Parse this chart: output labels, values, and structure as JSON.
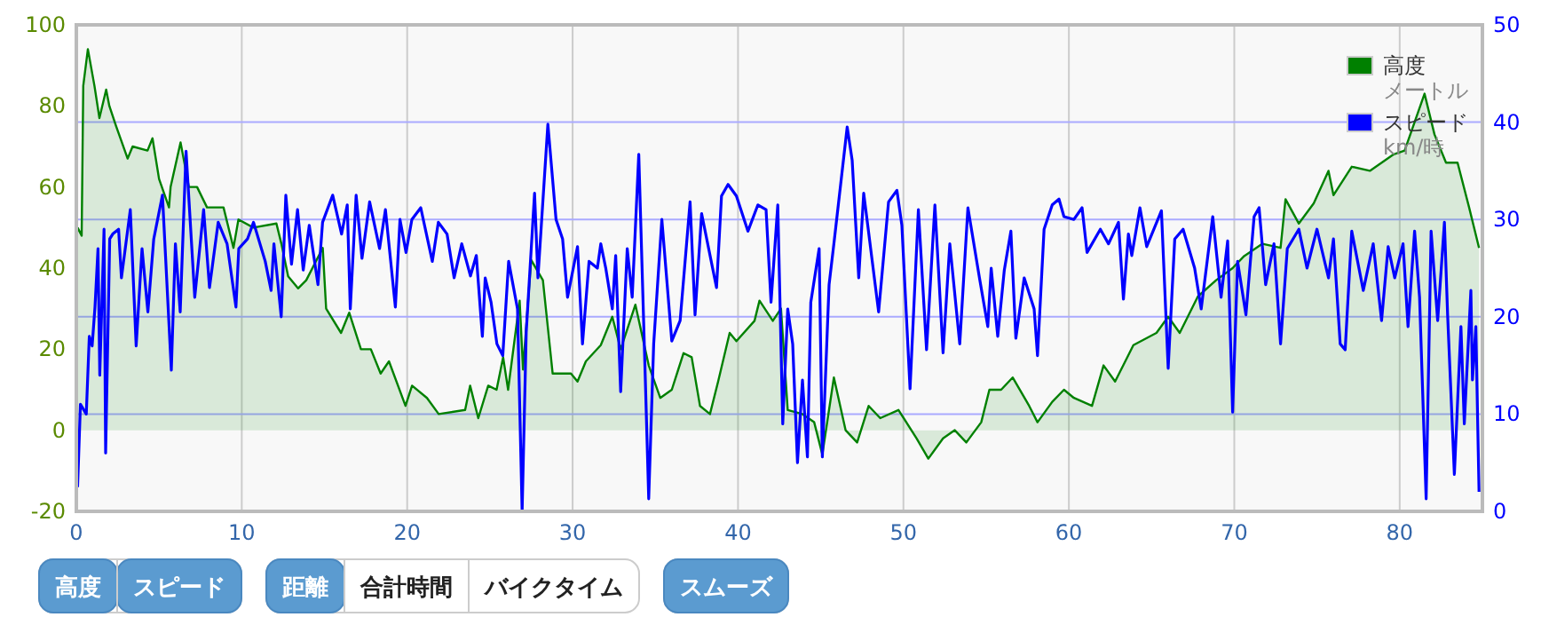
{
  "chart_data": {
    "type": "line",
    "xlim": [
      0,
      85
    ],
    "xticks": [
      0,
      10,
      20,
      30,
      40,
      50,
      60,
      70,
      80
    ],
    "ylim": [
      -20,
      100
    ],
    "yticks": [
      -20,
      0,
      20,
      40,
      60,
      80,
      100
    ],
    "y2lim": [
      0,
      50
    ],
    "y2ticks": [
      0,
      10,
      20,
      30,
      40,
      50
    ],
    "grid": true,
    "legend": "top right",
    "marker": "none",
    "line_style": "solid",
    "annotations": [
      "メートル",
      "km/時",
      "高度",
      "スピード",
      "距離",
      "合計時間",
      "バイクタイム",
      "スムーズ"
    ],
    "series": [
      {
        "name": "高度",
        "type": "area",
        "color": "#008000",
        "x": [
          0.07,
          0.32,
          0.42,
          0.7,
          1.1,
          1.4,
          1.8,
          2.0,
          2.4,
          3.1,
          3.4,
          4.3,
          4.6,
          5.0,
          5.6,
          5.7,
          6.3,
          6.8,
          7.3,
          7.9,
          8.9,
          9.5,
          9.8,
          10.7,
          12.1,
          12.4,
          12.8,
          13.4,
          13.9,
          14.9,
          15.1,
          16.0,
          16.5,
          17.2,
          17.8,
          18.4,
          18.9,
          19.9,
          20.3,
          21.2,
          21.9,
          23.5,
          23.8,
          24.3,
          24.9,
          25.4,
          25.8,
          26.1,
          26.8,
          27.0,
          27.5,
          28.2,
          28.8,
          29.9,
          30.3,
          30.8,
          31.7,
          32.4,
          32.9,
          33.8,
          34.6,
          35.3,
          36.0,
          36.7,
          37.2,
          37.7,
          38.3,
          38.8,
          39.5,
          39.9,
          41.0,
          41.3,
          42.1,
          42.6,
          43.0,
          43.9,
          44.6,
          45.1,
          45.8,
          46.5,
          47.2,
          47.9,
          48.6,
          49.7,
          50.8,
          51.5,
          52.4,
          53.1,
          53.8,
          54.7,
          55.2,
          55.9,
          56.6,
          57.6,
          58.1,
          59.0,
          59.7,
          60.3,
          61.4,
          62.1,
          62.8,
          63.9,
          65.3,
          66.0,
          66.7,
          67.8,
          68.9,
          69.9,
          70.6,
          71.7,
          72.8,
          73.1,
          73.9,
          74.8,
          75.7,
          76.0,
          77.1,
          78.2,
          79.6,
          80.3,
          81.5,
          82.1,
          82.8,
          83.5,
          84.2,
          84.8
        ],
        "values": [
          50,
          48,
          85,
          94,
          85,
          77,
          84,
          80,
          75,
          67,
          70,
          69,
          72,
          62,
          55,
          60,
          71,
          60,
          60,
          55,
          55,
          45,
          52,
          50,
          51,
          46,
          38,
          35,
          37,
          45,
          30,
          24,
          29,
          20,
          20,
          14,
          17,
          6,
          11,
          8,
          4,
          5,
          11,
          3,
          11,
          10,
          18,
          10,
          32,
          15,
          42,
          37,
          14,
          14,
          12,
          17,
          21,
          28,
          20,
          31,
          16,
          8,
          10,
          19,
          18,
          6,
          4,
          12,
          24,
          22,
          27,
          32,
          27,
          30,
          5,
          4,
          2,
          -6,
          13,
          0,
          -3,
          6,
          3,
          5,
          -2,
          -7,
          -2,
          0,
          -3,
          2,
          10,
          10,
          13,
          6,
          2,
          7,
          10,
          8,
          6,
          16,
          12,
          21,
          24,
          28,
          24,
          33,
          37,
          40,
          43,
          46,
          45,
          57,
          51,
          56,
          64,
          58,
          65,
          64,
          68,
          69,
          83,
          73,
          66,
          66,
          55,
          45
        ]
      },
      {
        "name": "スピード",
        "type": "line",
        "axis": "y2",
        "color": "#0000ff",
        "x": [
          0.07,
          0.25,
          0.6,
          0.78,
          0.96,
          1.13,
          1.31,
          1.42,
          1.67,
          1.77,
          2.02,
          2.2,
          2.55,
          2.73,
          3.26,
          3.62,
          3.97,
          4.33,
          4.68,
          5.21,
          5.74,
          5.99,
          6.28,
          6.63,
          7.16,
          7.7,
          8.05,
          8.58,
          9.11,
          9.65,
          9.82,
          10.35,
          10.71,
          11.42,
          11.77,
          11.95,
          12.38,
          12.66,
          13.01,
          13.37,
          13.72,
          14.08,
          14.61,
          14.89,
          15.5,
          16.03,
          16.38,
          16.56,
          16.91,
          17.27,
          17.73,
          18.33,
          18.69,
          19.29,
          19.57,
          19.93,
          20.28,
          20.82,
          21.52,
          21.88,
          22.41,
          22.84,
          23.3,
          23.83,
          24.18,
          24.54,
          24.72,
          25.07,
          25.43,
          25.78,
          26.13,
          26.67,
          26.95,
          27.2,
          27.7,
          27.9,
          28.5,
          29.0,
          29.4,
          29.7,
          30.3,
          30.6,
          31.0,
          31.5,
          31.7,
          32.0,
          32.4,
          32.6,
          32.9,
          33.3,
          33.6,
          34.0,
          34.4,
          34.6,
          34.9,
          35.4,
          36.0,
          36.5,
          37.1,
          37.4,
          37.8,
          38.7,
          39.0,
          39.4,
          39.9,
          40.6,
          41.2,
          41.7,
          42.0,
          42.4,
          42.7,
          43.0,
          43.3,
          43.6,
          43.9,
          44.2,
          44.4,
          44.9,
          45.1,
          45.5,
          45.8,
          46.6,
          46.9,
          47.3,
          47.6,
          48.5,
          49.1,
          49.6,
          49.9,
          50.4,
          50.9,
          51.4,
          51.9,
          52.4,
          52.8,
          53.4,
          53.9,
          54.6,
          55.1,
          55.3,
          55.7,
          56.1,
          56.5,
          56.8,
          57.3,
          57.9,
          58.1,
          58.5,
          59.0,
          59.4,
          59.7,
          60.3,
          60.8,
          61.1,
          61.9,
          62.4,
          63.0,
          63.3,
          63.6,
          63.8,
          64.3,
          64.7,
          65.6,
          66.0,
          66.4,
          66.9,
          67.6,
          68.0,
          68.7,
          69.2,
          69.6,
          69.9,
          70.2,
          70.7,
          71.2,
          71.5,
          71.9,
          72.4,
          72.8,
          73.2,
          73.9,
          74.4,
          75.0,
          75.7,
          76.0,
          76.4,
          76.7,
          77.1,
          77.8,
          78.4,
          78.9,
          79.3,
          79.7,
          80.2,
          80.5,
          80.9,
          81.2,
          81.6,
          81.9,
          82.3,
          82.7,
          82.9,
          83.3,
          83.7,
          83.9,
          84.3,
          84.4,
          84.6,
          84.8
        ],
        "values": [
          2.5,
          11,
          10,
          18,
          17,
          21,
          27,
          14,
          29,
          6,
          28,
          28.5,
          29,
          24,
          31,
          17,
          27,
          20.5,
          28,
          32.5,
          14.5,
          27.5,
          20.5,
          37,
          22,
          31,
          23,
          29.7,
          27.5,
          21,
          27,
          28,
          29.7,
          25.7,
          22.7,
          27.5,
          20,
          32.5,
          25.4,
          31,
          24.8,
          29.4,
          23.3,
          29.7,
          32.5,
          28.5,
          31.5,
          20.8,
          32.5,
          26,
          31.8,
          27,
          31,
          21,
          30,
          26.6,
          30,
          31.2,
          25.7,
          29.7,
          28.5,
          24,
          27.5,
          24.2,
          26.3,
          18,
          24,
          21.5,
          17.2,
          16,
          25.7,
          20.8,
          0,
          18.4,
          32.7,
          24,
          39.8,
          30,
          28,
          22,
          27.2,
          17.2,
          25.7,
          25,
          27.5,
          25,
          20.8,
          26.3,
          12.3,
          27,
          22,
          36.7,
          13.5,
          1.3,
          17.2,
          30,
          17.5,
          19.6,
          31.8,
          20.2,
          30.6,
          23,
          32.4,
          33.6,
          32.4,
          28.8,
          31.5,
          31,
          21.5,
          31.5,
          9,
          20.8,
          17.2,
          5,
          13.5,
          5.6,
          21.5,
          27,
          5.6,
          23.3,
          27.5,
          39.5,
          36.1,
          24,
          32.7,
          20.5,
          31.8,
          33,
          29.4,
          12.6,
          31,
          16.6,
          31.5,
          16.3,
          27.5,
          17.2,
          31.2,
          24,
          19,
          25,
          18,
          24.8,
          28.8,
          17.8,
          24,
          20.8,
          16,
          29,
          31.5,
          32.1,
          30.3,
          30,
          31.2,
          26.6,
          29,
          27.5,
          29.7,
          21.8,
          28.5,
          26.3,
          31.2,
          27.2,
          30.9,
          14.7,
          28,
          29,
          25,
          20.8,
          30.3,
          22,
          27.8,
          10.2,
          25.7,
          20.2,
          30.3,
          31.2,
          23.3,
          27.5,
          17.2,
          27,
          29,
          25,
          29,
          24,
          28,
          17.2,
          16.6,
          28.8,
          22.7,
          27.5,
          19.6,
          27.2,
          24,
          27.5,
          19,
          28.8,
          22,
          1.3,
          28.8,
          19.6,
          29.7,
          20.2,
          3.8,
          19,
          9,
          22.7,
          13.5,
          19,
          2
        ]
      }
    ]
  }
}
